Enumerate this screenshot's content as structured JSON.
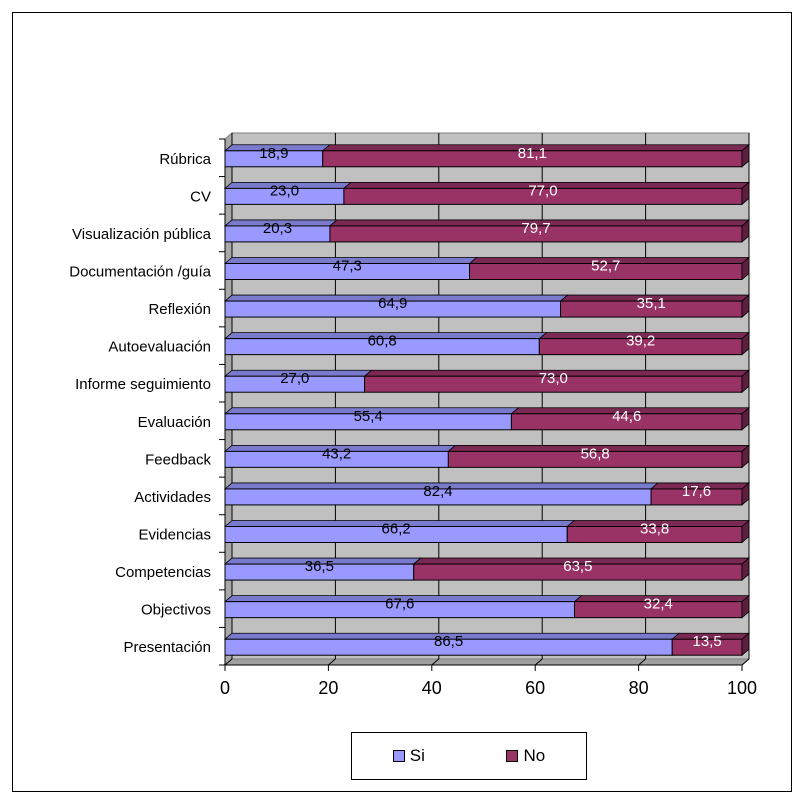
{
  "chart_data": {
    "type": "bar",
    "orientation": "horizontal",
    "stacked": true,
    "three_d": true,
    "categories": [
      "Rúbrica",
      "CV",
      "Visualización pública",
      "Documentación /guía",
      "Reflexión",
      "Autoevaluación",
      "Informe seguimiento",
      "Evaluación",
      "Feedback",
      "Actividades",
      "Evidencias",
      "Competencias",
      "Objectivos",
      "Presentación"
    ],
    "series": [
      {
        "name": "Si",
        "color": "#9999FF",
        "values": [
          18.9,
          23.0,
          20.3,
          47.3,
          64.9,
          60.8,
          27.0,
          55.4,
          43.2,
          82.4,
          66.2,
          36.5,
          67.6,
          86.5
        ],
        "labels": [
          "18,9",
          "23,0",
          "20,3",
          "47,3",
          "64,9",
          "60,8",
          "27,0",
          "55,4",
          "43,2",
          "82,4",
          "66,2",
          "36,5",
          "67,6",
          "86,5"
        ]
      },
      {
        "name": "No",
        "color": "#993366",
        "values": [
          81.1,
          77.0,
          79.7,
          52.7,
          35.1,
          39.2,
          73.0,
          44.6,
          56.8,
          17.6,
          33.8,
          63.5,
          32.4,
          13.5
        ],
        "labels": [
          "81,1",
          "77,0",
          "79,7",
          "52,7",
          "35,1",
          "39,2",
          "73,0",
          "44,6",
          "56,8",
          "17,6",
          "33,8",
          "63,5",
          "32,4",
          "13,5"
        ]
      }
    ],
    "xlim": [
      0,
      100
    ],
    "xticks": [
      "0",
      "20",
      "40",
      "60",
      "80",
      "100"
    ],
    "grid": true,
    "legend_position": "bottom",
    "title": "",
    "xlabel": "",
    "ylabel": ""
  },
  "legend": {
    "si": "Si",
    "no": "No"
  }
}
